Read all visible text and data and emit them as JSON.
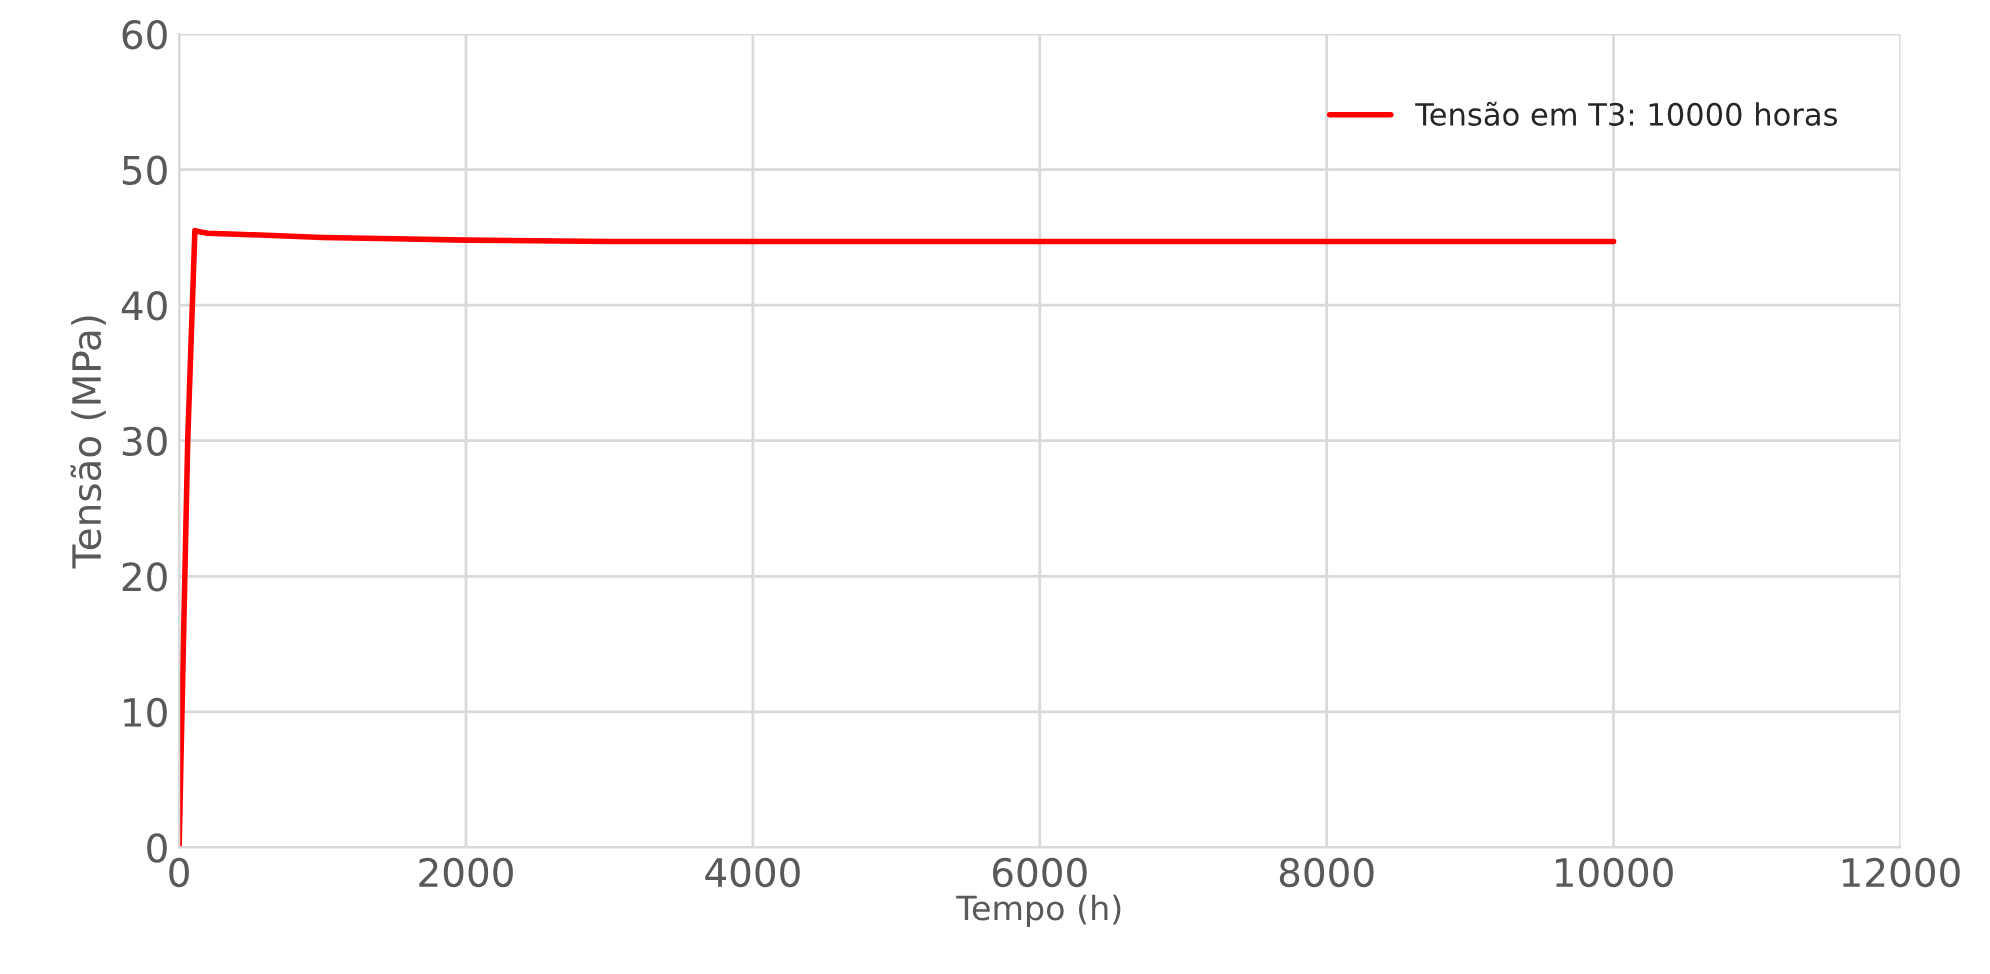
{
  "chart_data": {
    "type": "line",
    "xlabel": "Tempo (h)",
    "ylabel": "Tensão (MPa)",
    "series": [
      {
        "name": "Tensão em T3: 10000 horas",
        "color": "#ff0000",
        "x": [
          0,
          60,
          110,
          150,
          200,
          500,
          1000,
          1500,
          2000,
          3000,
          4000,
          6000,
          8000,
          10000
        ],
        "values": [
          0,
          30,
          45.5,
          45.4,
          45.3,
          45.2,
          45.0,
          44.9,
          44.8,
          44.7,
          44.7,
          44.7,
          44.7,
          44.7
        ]
      }
    ],
    "xlim": [
      0,
      12000
    ],
    "xticks": [
      0,
      2000,
      4000,
      6000,
      8000,
      10000,
      12000
    ],
    "ylim": [
      0,
      60
    ],
    "yticks": [
      0,
      10,
      20,
      30,
      40,
      50,
      60
    ],
    "grid": true,
    "legend": "top right",
    "marker": "none",
    "line_style": "solid"
  }
}
